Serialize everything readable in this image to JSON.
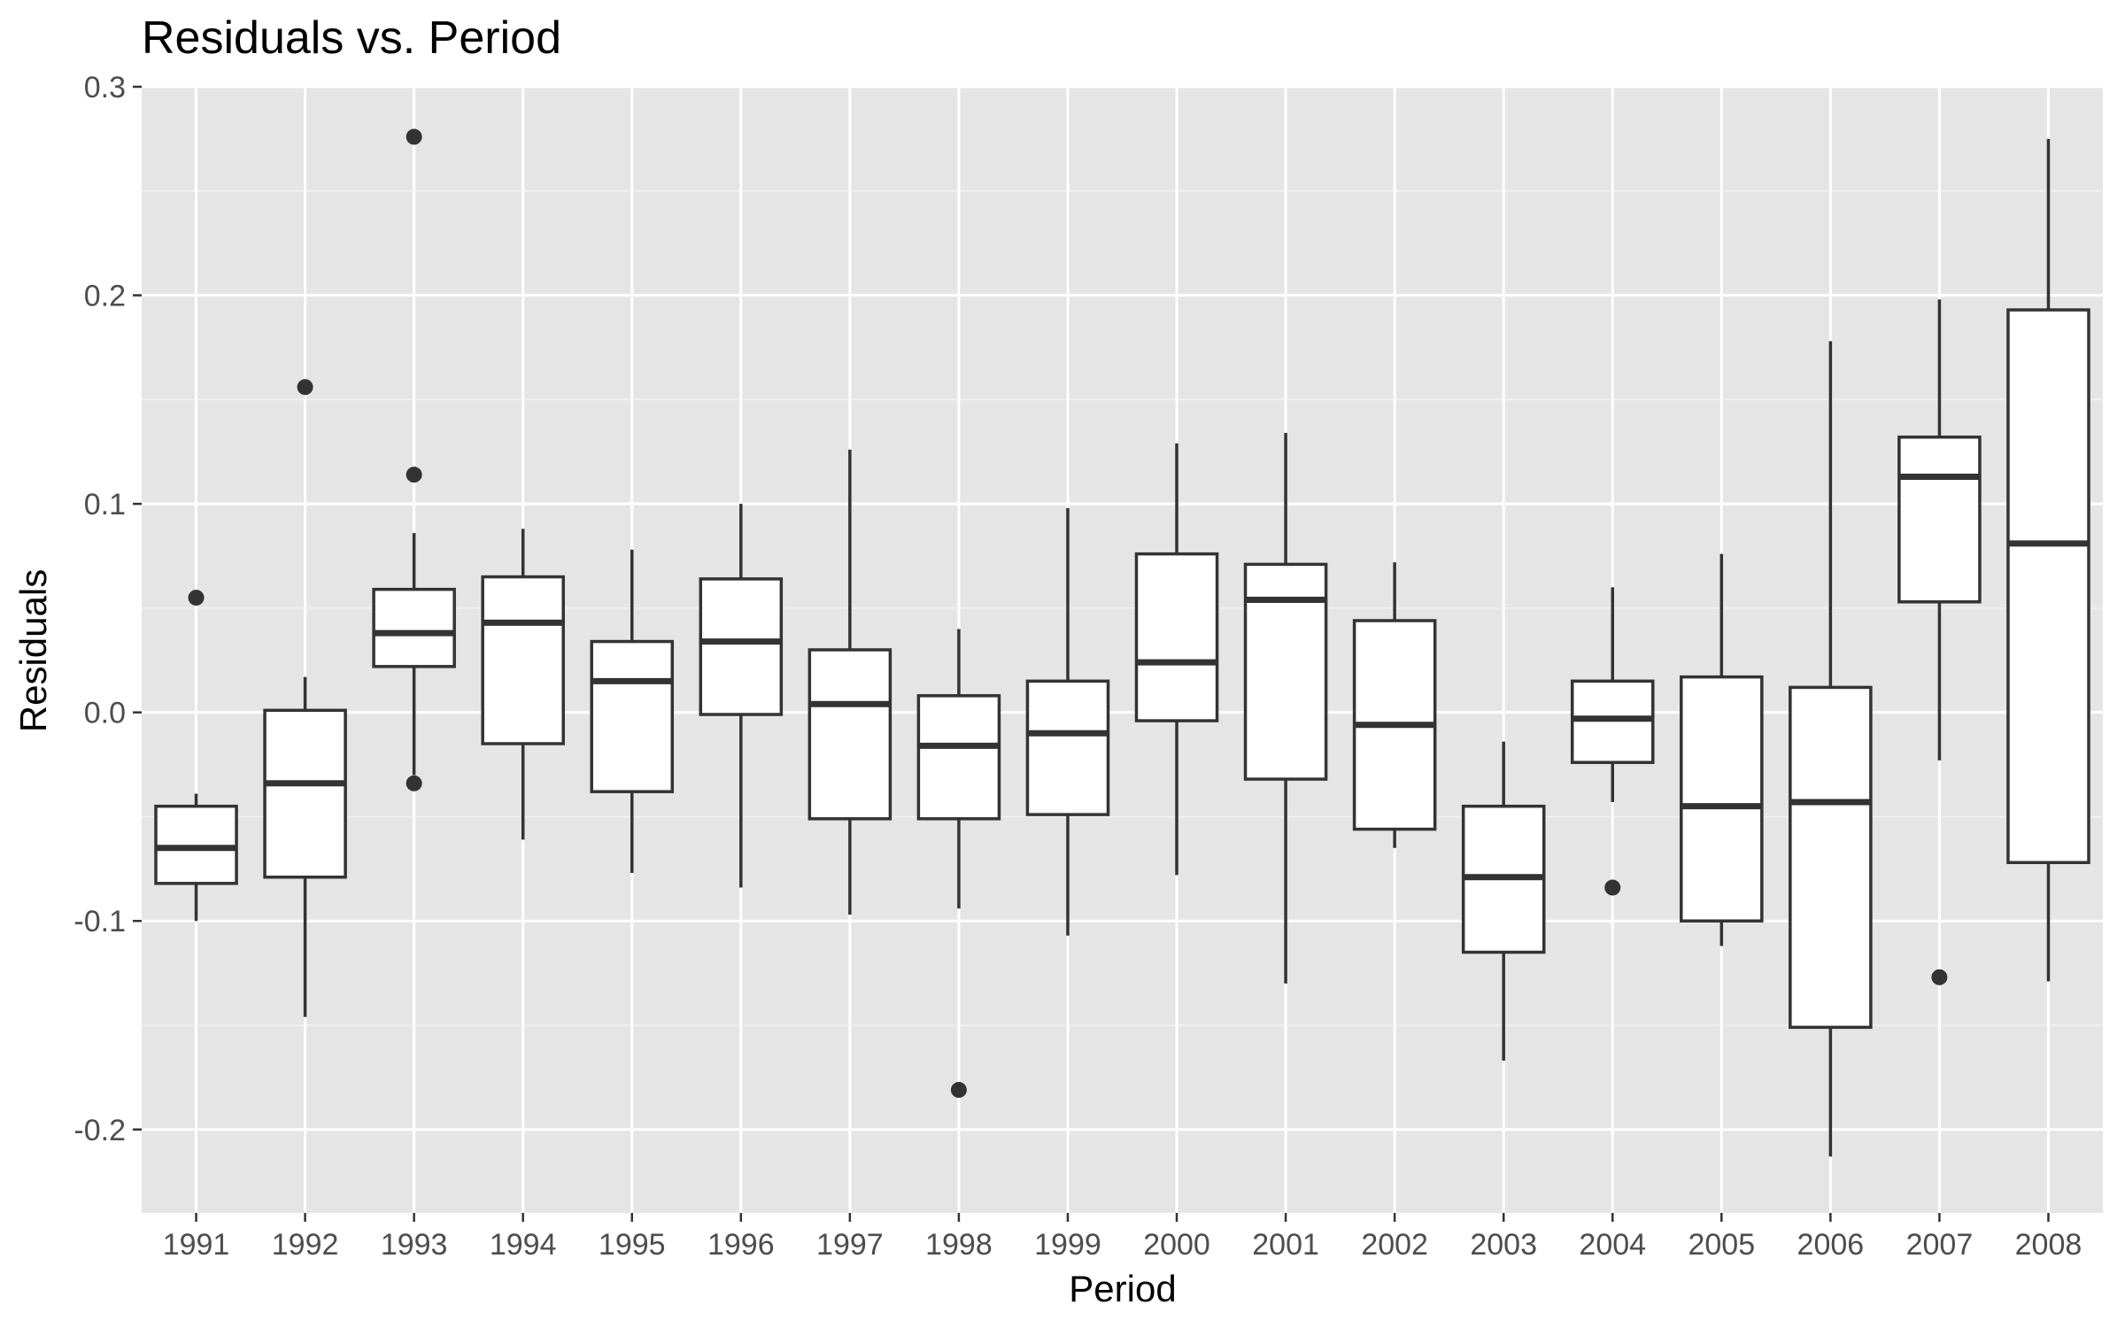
{
  "chart_data": {
    "type": "boxplot",
    "title": "Residuals vs. Period",
    "xlabel": "Period",
    "ylabel": "Residuals",
    "ylim": [
      -0.24,
      0.3
    ],
    "yticks": [
      -0.2,
      -0.1,
      0.0,
      0.1,
      0.2,
      0.3
    ],
    "ytick_labels": [
      "-0.2",
      "-0.1",
      "0.0",
      "0.1",
      "0.2",
      "0.3"
    ],
    "grid": true,
    "colors": {
      "panel": "#e5e5e5",
      "grid": "#ffffff",
      "box_fill": "#ffffff",
      "box_line": "#333333",
      "outlier": "#333333"
    },
    "categories": [
      "1991",
      "1992",
      "1993",
      "1994",
      "1995",
      "1996",
      "1997",
      "1998",
      "1999",
      "2000",
      "2001",
      "2002",
      "2003",
      "2004",
      "2005",
      "2006",
      "2007",
      "2008"
    ],
    "boxes": [
      {
        "x": "1991",
        "low": -0.1,
        "q1": -0.082,
        "median": -0.065,
        "q3": -0.045,
        "high": -0.039,
        "outliers": [
          0.055
        ]
      },
      {
        "x": "1992",
        "low": -0.146,
        "q1": -0.079,
        "median": -0.034,
        "q3": 0.001,
        "high": 0.017,
        "outliers": [
          0.156
        ]
      },
      {
        "x": "1993",
        "low": -0.03,
        "q1": 0.022,
        "median": 0.038,
        "q3": 0.059,
        "high": 0.086,
        "outliers": [
          0.276,
          0.114,
          -0.034
        ]
      },
      {
        "x": "1994",
        "low": -0.061,
        "q1": -0.015,
        "median": 0.043,
        "q3": 0.065,
        "high": 0.088,
        "outliers": []
      },
      {
        "x": "1995",
        "low": -0.077,
        "q1": -0.038,
        "median": 0.015,
        "q3": 0.034,
        "high": 0.078,
        "outliers": []
      },
      {
        "x": "1996",
        "low": -0.084,
        "q1": -0.001,
        "median": 0.034,
        "q3": 0.064,
        "high": 0.1,
        "outliers": []
      },
      {
        "x": "1997",
        "low": -0.097,
        "q1": -0.051,
        "median": 0.004,
        "q3": 0.03,
        "high": 0.126,
        "outliers": []
      },
      {
        "x": "1998",
        "low": -0.094,
        "q1": -0.051,
        "median": -0.016,
        "q3": 0.008,
        "high": 0.04,
        "outliers": [
          -0.181
        ]
      },
      {
        "x": "1999",
        "low": -0.107,
        "q1": -0.049,
        "median": -0.01,
        "q3": 0.015,
        "high": 0.098,
        "outliers": []
      },
      {
        "x": "2000",
        "low": -0.078,
        "q1": -0.004,
        "median": 0.024,
        "q3": 0.076,
        "high": 0.129,
        "outliers": []
      },
      {
        "x": "2001",
        "low": -0.13,
        "q1": -0.032,
        "median": 0.054,
        "q3": 0.071,
        "high": 0.134,
        "outliers": []
      },
      {
        "x": "2002",
        "low": -0.065,
        "q1": -0.056,
        "median": -0.006,
        "q3": 0.044,
        "high": 0.072,
        "outliers": []
      },
      {
        "x": "2003",
        "low": -0.167,
        "q1": -0.115,
        "median": -0.079,
        "q3": -0.045,
        "high": -0.014,
        "outliers": []
      },
      {
        "x": "2004",
        "low": -0.043,
        "q1": -0.024,
        "median": -0.003,
        "q3": 0.015,
        "high": 0.06,
        "outliers": [
          -0.084
        ]
      },
      {
        "x": "2005",
        "low": -0.112,
        "q1": -0.1,
        "median": -0.045,
        "q3": 0.017,
        "high": 0.076,
        "outliers": []
      },
      {
        "x": "2006",
        "low": -0.213,
        "q1": -0.151,
        "median": -0.043,
        "q3": 0.012,
        "high": 0.178,
        "outliers": []
      },
      {
        "x": "2007",
        "low": -0.023,
        "q1": 0.053,
        "median": 0.113,
        "q3": 0.132,
        "high": 0.198,
        "outliers": [
          -0.127
        ]
      },
      {
        "x": "2008",
        "low": -0.129,
        "q1": -0.072,
        "median": 0.081,
        "q3": 0.193,
        "high": 0.275,
        "outliers": []
      }
    ]
  }
}
